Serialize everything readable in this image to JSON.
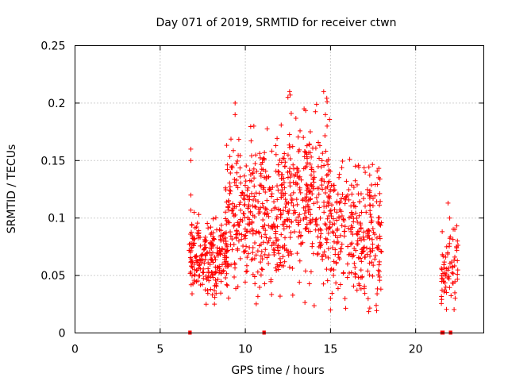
{
  "chart_data": {
    "type": "scatter",
    "title": "Day 071 of 2019, SRMTID for receiver ctwn",
    "xlabel": "GPS time / hours",
    "ylabel": "SRMTID / TECUs",
    "xlim": [
      0,
      24
    ],
    "ylim": [
      0,
      0.25
    ],
    "xticks": [
      0,
      5,
      10,
      15,
      20
    ],
    "xtick_labels": [
      "0",
      "5",
      "10",
      "15",
      "20"
    ],
    "yticks": [
      0,
      0.05,
      0.1,
      0.15,
      0.2,
      0.25
    ],
    "ytick_labels": [
      "0",
      "0.05",
      "0.1",
      "0.15",
      "0.2",
      "0.25"
    ],
    "grid": true,
    "marker": "+",
    "series_color": "#ff0000",
    "outlier_rows": [
      {
        "x": 6.8,
        "y": 0.16
      },
      {
        "x": 6.8,
        "y": 0.15
      },
      {
        "x": 6.8,
        "y": 0.12
      },
      {
        "x": 9.4,
        "y": 0.2
      },
      {
        "x": 9.4,
        "y": 0.19
      },
      {
        "x": 12.6,
        "y": 0.21
      },
      {
        "x": 12.5,
        "y": 0.205
      },
      {
        "x": 14.6,
        "y": 0.21
      },
      {
        "x": 14.7,
        "y": 0.19
      },
      {
        "x": 14.8,
        "y": 0.18
      },
      {
        "x": 10.5,
        "y": 0.18
      },
      {
        "x": 15.0,
        "y": 0.02
      },
      {
        "x": 15.0,
        "y": 0.03
      },
      {
        "x": 7.7,
        "y": 0.025
      },
      {
        "x": 21.9,
        "y": 0.113
      },
      {
        "x": 22.0,
        "y": 0.1
      },
      {
        "x": 22.3,
        "y": 0.09
      },
      {
        "x": 22.3,
        "y": 0.035
      }
    ],
    "clusters": [
      {
        "x_start": 6.7,
        "x_end": 9.0,
        "y_center": 0.065,
        "y_spread": 0.05,
        "count": 230
      },
      {
        "x_start": 8.8,
        "x_end": 12.0,
        "y_center": 0.105,
        "y_spread": 0.09,
        "count": 330
      },
      {
        "x_start": 12.0,
        "x_end": 15.0,
        "y_center": 0.115,
        "y_spread": 0.1,
        "count": 330
      },
      {
        "x_start": 15.0,
        "x_end": 18.0,
        "y_center": 0.085,
        "y_spread": 0.085,
        "count": 280
      },
      {
        "x_start": 21.5,
        "x_end": 22.5,
        "y_center": 0.058,
        "y_spread": 0.05,
        "count": 70
      }
    ],
    "baseline_marks": [
      {
        "x_start": 6.65,
        "x_end": 6.85
      },
      {
        "x_start": 11.0,
        "x_end": 11.2
      },
      {
        "x_start": 21.45,
        "x_end": 21.7
      },
      {
        "x_start": 21.95,
        "x_end": 22.15
      }
    ]
  }
}
